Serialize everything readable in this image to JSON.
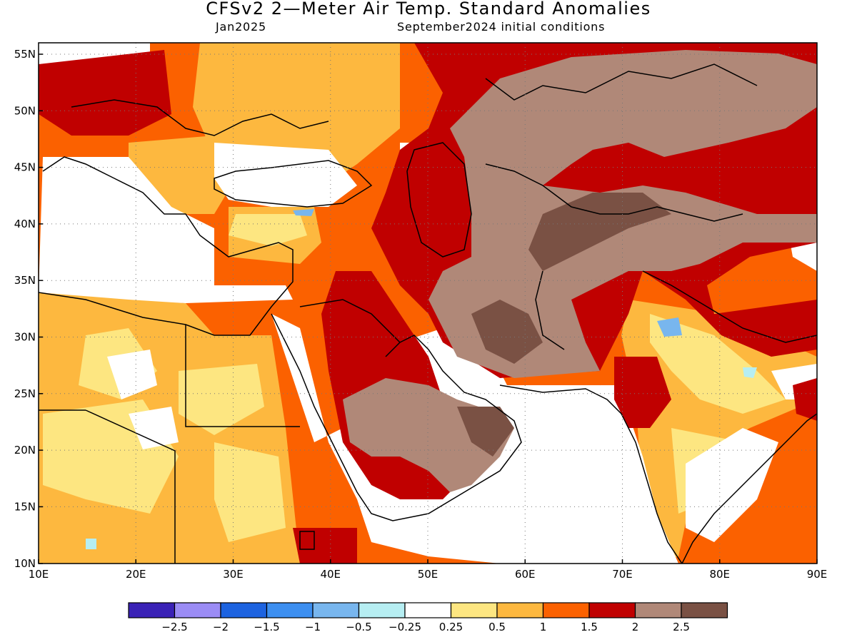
{
  "title": "CFSv2 2—Meter Air Temp. Standard Anomalies",
  "subtitle_left": "Jan2025",
  "subtitle_right": "September2024 initial conditions",
  "lat_labels": [
    "55N",
    "50N",
    "45N",
    "40N",
    "35N",
    "30N",
    "25N",
    "20N",
    "15N",
    "10N"
  ],
  "lon_labels": [
    "10E",
    "20E",
    "30E",
    "40E",
    "50E",
    "60E",
    "70E",
    "80E",
    "90E"
  ],
  "colorbar": {
    "colors": [
      "#3a22b6",
      "#9b8cf5",
      "#1d63e0",
      "#3d8ff0",
      "#78b6ee",
      "#b6eef2",
      "#ffffff",
      "#fde681",
      "#fdb83f",
      "#fb6100",
      "#c00000",
      "#b08878",
      "#7a5144"
    ],
    "tick_labels": [
      "−2.5",
      "−2",
      "−1.5",
      "−1",
      "−0.5",
      "−0.25",
      "0.25",
      "0.5",
      "1",
      "1.5",
      "2",
      "2.5"
    ]
  }
}
